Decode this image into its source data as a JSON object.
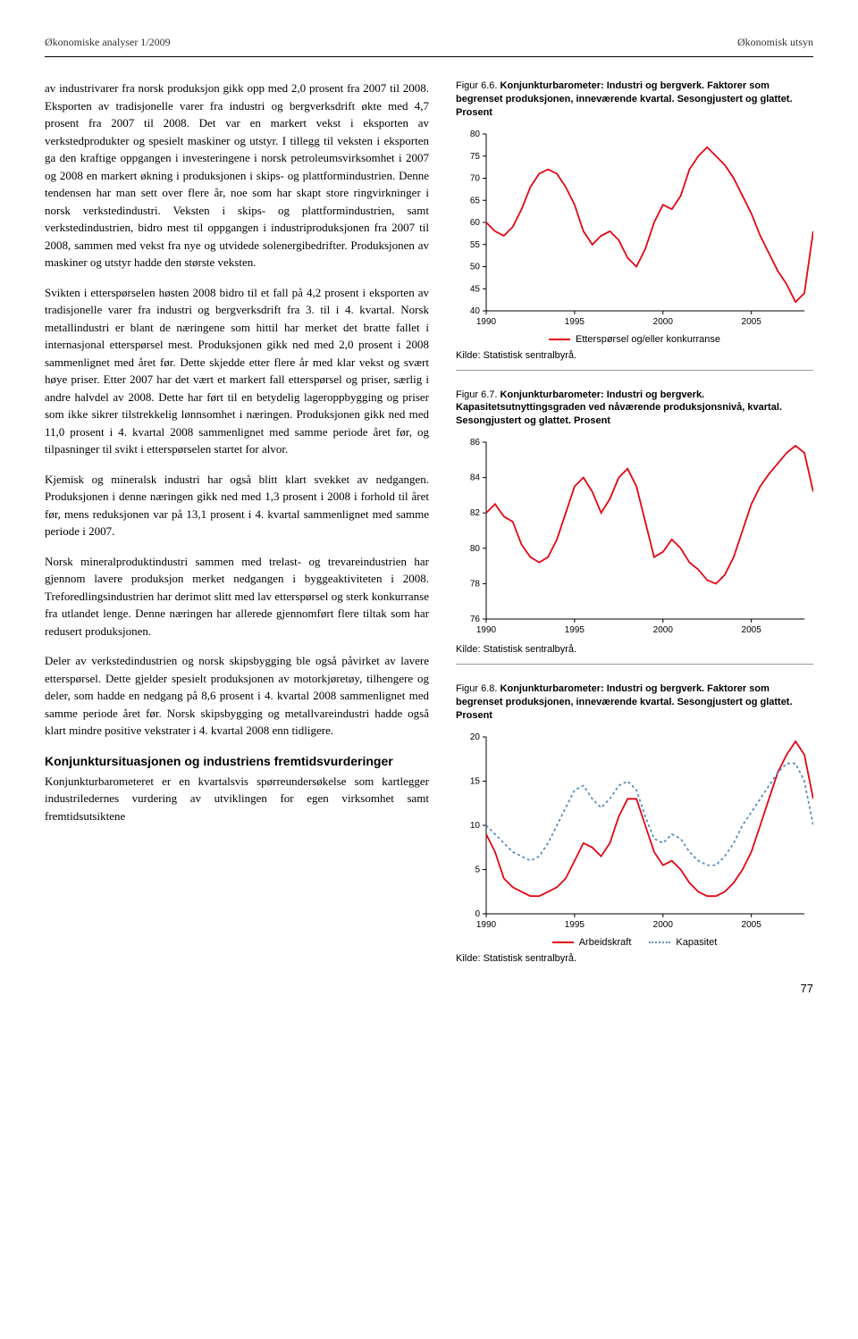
{
  "header": {
    "left": "Økonomiske analyser 1/2009",
    "right": "Økonomisk utsyn"
  },
  "body": {
    "p1": "av industrivarer fra norsk produksjon gikk opp med 2,0 prosent fra 2007 til 2008. Eksporten av tradisjonelle varer fra industri og bergverksdrift økte med 4,7 prosent fra 2007 til 2008. Det var en markert vekst i eksporten av verkstedprodukter og spesielt maskiner og utstyr. I tillegg til veksten i eksporten ga den kraftige oppgangen i investeringene i norsk petroleumsvirksomhet i 2007 og 2008 en markert økning i produksjonen i skips- og plattformindustrien. Denne tendensen har man sett over flere år, noe som har skapt store ringvirkninger i norsk verkstedindustri. Veksten i skips- og plattformindustrien, samt verkstedindustrien, bidro mest til oppgangen i industriproduksjonen fra 2007 til 2008, sammen med vekst fra nye og utvidede solenergibedrifter. Produksjonen av maskiner og utstyr hadde den største veksten.",
    "p2": "Svikten i etterspørselen høsten 2008 bidro til et fall på 4,2 prosent i eksporten av tradisjonelle varer fra industri og bergverksdrift fra 3. til i 4. kvartal. Norsk metallindustri er blant de næringene som hittil har merket det bratte fallet i internasjonal etterspørsel mest. Produksjonen gikk ned med 2,0 prosent i 2008 sammenlignet med året før. Dette skjedde etter flere år med klar vekst og svært høye priser. Etter 2007 har det vært et markert fall etterspørsel og priser, særlig i andre halvdel av 2008. Dette har ført til en betydelig lageroppbygging og priser som ikke sikrer tilstrekkelig lønnsomhet i næringen. Produksjonen gikk ned med 11,0 prosent i 4. kvartal 2008 sammenlignet med samme periode året før, og tilpasninger til svikt i etterspørselen startet for alvor.",
    "p3": "Kjemisk og mineralsk industri har også blitt klart svekket av nedgangen. Produksjonen i denne næringen gikk ned med 1,3 prosent i 2008 i forhold til året før, mens reduksjonen var på 13,1 prosent i 4. kvartal sammenlignet med samme periode i 2007.",
    "p4": "Norsk mineralproduktindustri sammen med trelast- og trevareindustrien har gjennom lavere produksjon merket nedgangen i byggeaktiviteten i 2008. Treforedlingsindustrien har derimot slitt med lav etterspørsel og sterk konkurranse fra utlandet lenge. Denne næringen har allerede gjennomført flere tiltak som har redusert produksjonen.",
    "p5": "Deler av verkstedindustrien og norsk skipsbygging ble også påvirket av lavere etterspørsel. Dette gjelder spesielt produksjonen av motorkjøretøy, tilhengere og deler, som hadde en nedgang på 8,6 prosent i 4. kvartal 2008 sammenlignet med samme periode året før. Norsk skipsbygging og metallvareindustri hadde også klart mindre positive vekstrater i 4. kvartal 2008 enn tidligere.",
    "subhead": "Konjunktursituasjonen og industriens fremtidsvurderinger",
    "p6": "Konjunkturbarometeret er en kvartalsvis spørreundersøkelse som kartlegger industriledernes vurdering av utviklingen for egen virksomhet samt fremtidsutsiktene"
  },
  "chart66": {
    "caption_a": "Figur 6.6. ",
    "caption_b": "Konjunkturbarometer: Industri og bergverk. Faktorer som begrenset produksjonen, inneværende kvartal. Sesongjustert og glattet. Prosent",
    "type": "line",
    "xlim": [
      1990,
      2008
    ],
    "ylim": [
      40,
      80
    ],
    "ytick_step": 5,
    "xticks": [
      1990,
      1995,
      2000,
      2005
    ],
    "series": {
      "red": {
        "label": "Etterspørsel og/eller konkurranse",
        "color": "#e30613",
        "points": [
          [
            1990,
            60
          ],
          [
            1990.5,
            58
          ],
          [
            1991,
            57
          ],
          [
            1991.5,
            59
          ],
          [
            1992,
            63
          ],
          [
            1992.5,
            68
          ],
          [
            1993,
            71
          ],
          [
            1993.5,
            72
          ],
          [
            1994,
            71
          ],
          [
            1994.5,
            68
          ],
          [
            1995,
            64
          ],
          [
            1995.5,
            58
          ],
          [
            1996,
            55
          ],
          [
            1996.5,
            57
          ],
          [
            1997,
            58
          ],
          [
            1997.5,
            56
          ],
          [
            1998,
            52
          ],
          [
            1998.5,
            50
          ],
          [
            1999,
            54
          ],
          [
            1999.5,
            60
          ],
          [
            2000,
            64
          ],
          [
            2000.5,
            63
          ],
          [
            2001,
            66
          ],
          [
            2001.5,
            72
          ],
          [
            2002,
            75
          ],
          [
            2002.5,
            77
          ],
          [
            2003,
            75
          ],
          [
            2003.5,
            73
          ],
          [
            2004,
            70
          ],
          [
            2004.5,
            66
          ],
          [
            2005,
            62
          ],
          [
            2005.5,
            57
          ],
          [
            2006,
            53
          ],
          [
            2006.5,
            49
          ],
          [
            2007,
            46
          ],
          [
            2007.5,
            42
          ],
          [
            2008,
            44
          ],
          [
            2008.5,
            58
          ]
        ]
      }
    },
    "legend_label": "Etterspørsel og/eller konkurranse",
    "source": "Kilde: Statistisk sentralbyrå."
  },
  "chart67": {
    "caption_a": "Figur 6.7. ",
    "caption_b": "Konjunkturbarometer: Industri og bergverk. Kapasitetsutnyttingsgraden ved nåværende produksjonsnivå, kvartal. Sesongjustert og glattet. Prosent",
    "type": "line",
    "xlim": [
      1990,
      2008
    ],
    "ylim": [
      76,
      86
    ],
    "ytick_step": 2,
    "xticks": [
      1990,
      1995,
      2000,
      2005
    ],
    "series": {
      "red": {
        "color": "#e30613",
        "points": [
          [
            1990,
            82
          ],
          [
            1990.5,
            82.5
          ],
          [
            1991,
            81.8
          ],
          [
            1991.5,
            81.5
          ],
          [
            1992,
            80.2
          ],
          [
            1992.5,
            79.5
          ],
          [
            1993,
            79.2
          ],
          [
            1993.5,
            79.5
          ],
          [
            1994,
            80.5
          ],
          [
            1994.5,
            82
          ],
          [
            1995,
            83.5
          ],
          [
            1995.5,
            84
          ],
          [
            1996,
            83.2
          ],
          [
            1996.5,
            82
          ],
          [
            1997,
            82.8
          ],
          [
            1997.5,
            84
          ],
          [
            1998,
            84.5
          ],
          [
            1998.5,
            83.5
          ],
          [
            1999,
            81.5
          ],
          [
            1999.5,
            79.5
          ],
          [
            2000,
            79.8
          ],
          [
            2000.5,
            80.5
          ],
          [
            2001,
            80
          ],
          [
            2001.5,
            79.2
          ],
          [
            2002,
            78.8
          ],
          [
            2002.5,
            78.2
          ],
          [
            2003,
            78
          ],
          [
            2003.5,
            78.5
          ],
          [
            2004,
            79.5
          ],
          [
            2004.5,
            81
          ],
          [
            2005,
            82.5
          ],
          [
            2005.5,
            83.5
          ],
          [
            2006,
            84.2
          ],
          [
            2006.5,
            84.8
          ],
          [
            2007,
            85.4
          ],
          [
            2007.5,
            85.8
          ],
          [
            2008,
            85.4
          ],
          [
            2008.5,
            83.2
          ]
        ]
      }
    },
    "source": "Kilde: Statistisk sentralbyrå."
  },
  "chart68": {
    "caption_a": "Figur 6.8. ",
    "caption_b": "Konjunkturbarometer: Industri og bergverk. Faktorer som begrenset produksjonen, inneværende kvartal. Sesongjustert og glattet. Prosent",
    "type": "line",
    "xlim": [
      1990,
      2008
    ],
    "ylim": [
      0,
      20
    ],
    "ytick_step": 5,
    "xticks": [
      1990,
      1995,
      2000,
      2005
    ],
    "series": {
      "red": {
        "label": "Arbeidskraft",
        "color": "#e30613",
        "points": [
          [
            1990,
            9
          ],
          [
            1990.5,
            7
          ],
          [
            1991,
            4
          ],
          [
            1991.5,
            3
          ],
          [
            1992,
            2.5
          ],
          [
            1992.5,
            2
          ],
          [
            1993,
            2
          ],
          [
            1993.5,
            2.5
          ],
          [
            1994,
            3
          ],
          [
            1994.5,
            4
          ],
          [
            1995,
            6
          ],
          [
            1995.5,
            8
          ],
          [
            1996,
            7.5
          ],
          [
            1996.5,
            6.5
          ],
          [
            1997,
            8
          ],
          [
            1997.5,
            11
          ],
          [
            1998,
            13
          ],
          [
            1998.5,
            13
          ],
          [
            1999,
            10
          ],
          [
            1999.5,
            7
          ],
          [
            2000,
            5.5
          ],
          [
            2000.5,
            6
          ],
          [
            2001,
            5
          ],
          [
            2001.5,
            3.5
          ],
          [
            2002,
            2.5
          ],
          [
            2002.5,
            2
          ],
          [
            2003,
            2
          ],
          [
            2003.5,
            2.5
          ],
          [
            2004,
            3.5
          ],
          [
            2004.5,
            5
          ],
          [
            2005,
            7
          ],
          [
            2005.5,
            10
          ],
          [
            2006,
            13
          ],
          [
            2006.5,
            16
          ],
          [
            2007,
            18
          ],
          [
            2007.5,
            19.5
          ],
          [
            2008,
            18
          ],
          [
            2008.5,
            13
          ]
        ]
      },
      "blue": {
        "label": "Kapasitet",
        "color": "#5a8fbf",
        "dashed": true,
        "points": [
          [
            1990,
            10
          ],
          [
            1990.5,
            9
          ],
          [
            1991,
            8
          ],
          [
            1991.5,
            7
          ],
          [
            1992,
            6.5
          ],
          [
            1992.5,
            6
          ],
          [
            1993,
            6.5
          ],
          [
            1993.5,
            8
          ],
          [
            1994,
            10
          ],
          [
            1994.5,
            12
          ],
          [
            1995,
            14
          ],
          [
            1995.5,
            14.5
          ],
          [
            1996,
            13
          ],
          [
            1996.5,
            12
          ],
          [
            1997,
            13
          ],
          [
            1997.5,
            14.5
          ],
          [
            1998,
            15
          ],
          [
            1998.5,
            14
          ],
          [
            1999,
            11
          ],
          [
            1999.5,
            8.5
          ],
          [
            2000,
            8
          ],
          [
            2000.5,
            9
          ],
          [
            2001,
            8.5
          ],
          [
            2001.5,
            7
          ],
          [
            2002,
            6
          ],
          [
            2002.5,
            5.5
          ],
          [
            2003,
            5.5
          ],
          [
            2003.5,
            6.5
          ],
          [
            2004,
            8
          ],
          [
            2004.5,
            10
          ],
          [
            2005,
            11.5
          ],
          [
            2005.5,
            13
          ],
          [
            2006,
            14.5
          ],
          [
            2006.5,
            16
          ],
          [
            2007,
            17
          ],
          [
            2007.5,
            17
          ],
          [
            2008,
            15
          ],
          [
            2008.5,
            10
          ]
        ]
      }
    },
    "legend_labels": {
      "red": "Arbeidskraft",
      "blue": "Kapasitet"
    },
    "source": "Kilde: Statistisk sentralbyrå."
  },
  "page_number": "77"
}
